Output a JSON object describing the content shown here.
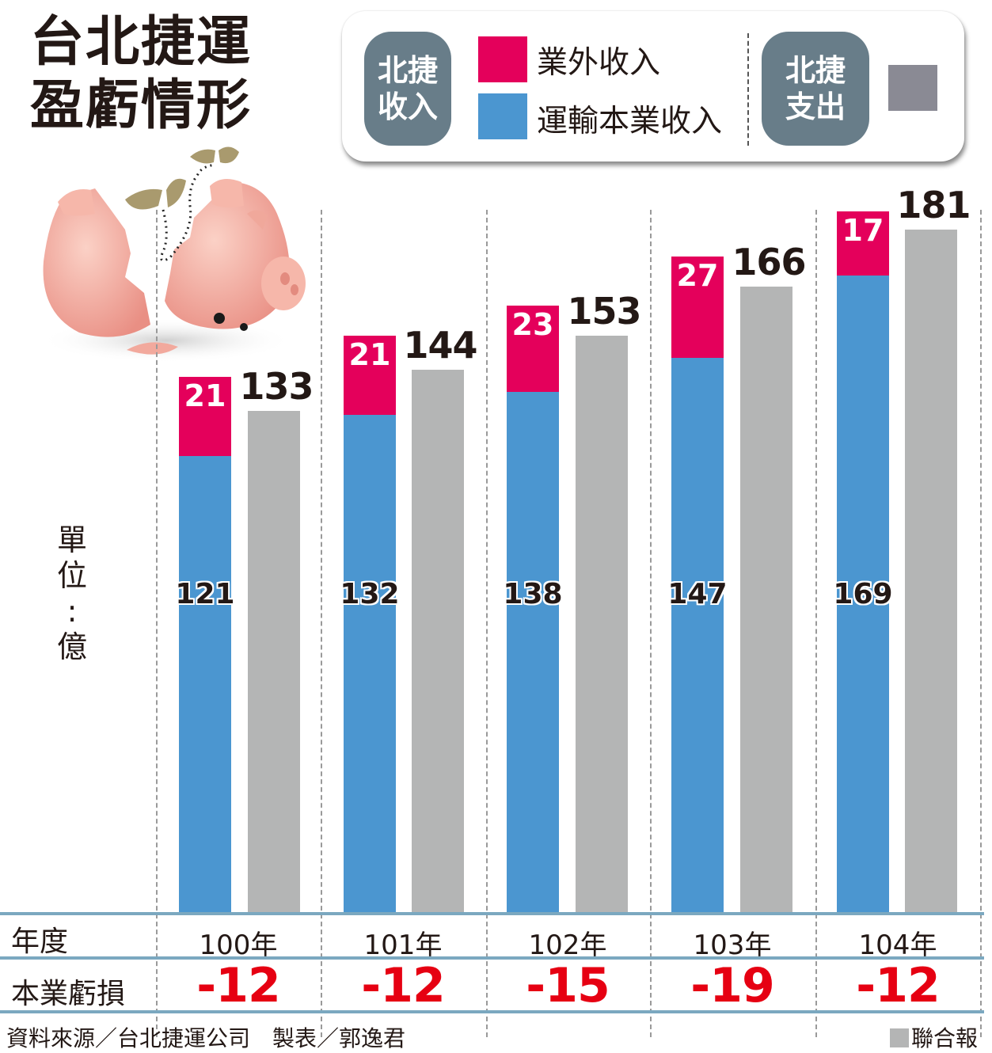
{
  "title": {
    "line1": "台北捷運",
    "line2": "盈虧情形"
  },
  "legend": {
    "income_pill": {
      "line1": "北捷",
      "line2": "收入"
    },
    "items": [
      {
        "label": "業外收入",
        "color": "#e4005b"
      },
      {
        "label": "運輸本業收入",
        "color": "#4b96d0"
      }
    ],
    "expense_pill": {
      "line1": "北捷",
      "line2": "支出"
    },
    "expense_color": "#8a8a94"
  },
  "unit": {
    "c1": "單",
    "c2": "位",
    "c3": ":",
    "c4": "億"
  },
  "table": {
    "year_header": "年度",
    "loss_header": "本業虧損",
    "years": [
      "100年",
      "101年",
      "102年",
      "103年",
      "104年"
    ],
    "losses": [
      "-12",
      "-12",
      "-15",
      "-19",
      "-12"
    ]
  },
  "footer": {
    "source": "資料來源／台北捷運公司　製表／郭逸君",
    "publisher": "聯合報"
  },
  "colors": {
    "transport": "#4b96d0",
    "non_operating": "#e4005b",
    "expense": "#b4b5b5",
    "loss": "#e60012",
    "rule": "#7ba8c0"
  },
  "chart_data": {
    "type": "bar",
    "title": "台北捷運盈虧情形",
    "ylabel": "單位：億",
    "xlabel": "年度",
    "categories": [
      "100年",
      "101年",
      "102年",
      "103年",
      "104年"
    ],
    "series": [
      {
        "name": "運輸本業收入",
        "stack": "北捷收入",
        "values": [
          121,
          132,
          138,
          147,
          169
        ]
      },
      {
        "name": "業外收入",
        "stack": "北捷收入",
        "values": [
          21,
          21,
          23,
          27,
          17
        ]
      },
      {
        "name": "北捷支出",
        "stack": "北捷支出",
        "values": [
          133,
          144,
          153,
          166,
          181
        ]
      }
    ],
    "annotations": {
      "本業虧損": [
        -12,
        -12,
        -15,
        -19,
        -12
      ]
    },
    "grid": false,
    "legend_position": "top"
  }
}
